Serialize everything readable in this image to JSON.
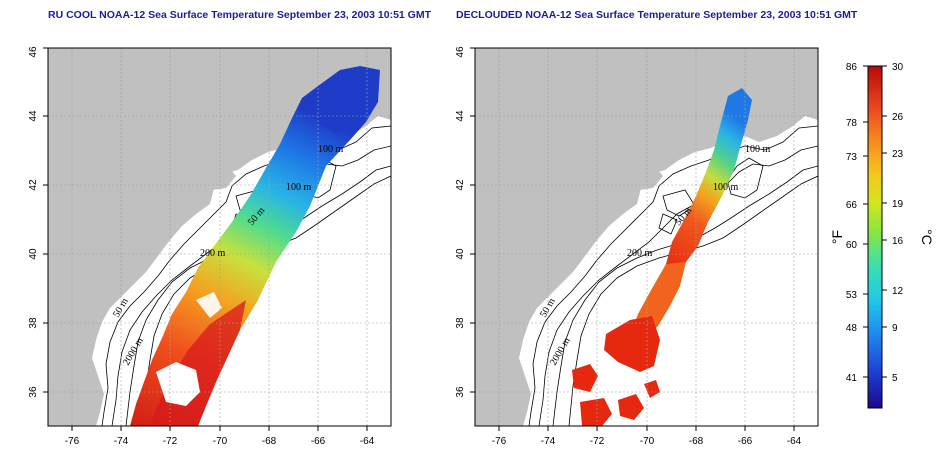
{
  "left_panel": {
    "title": "RU COOL NOAA-12 Sea Surface Temperature September 23, 2003 10:51 GMT",
    "contour_labels": [
      "100 m",
      "100 m",
      "50 m",
      "200 m",
      "50 m",
      "2000 m"
    ]
  },
  "right_panel": {
    "title": "DECLOUDED NOAA-12 Sea Surface Temperature September 23, 2003 10:51 GMT",
    "contour_labels": [
      "100 m",
      "100 m",
      "50 m",
      "200 m",
      "50 m",
      "2000 m"
    ]
  },
  "axes": {
    "x_ticks": [
      "-76",
      "-74",
      "-72",
      "-70",
      "-68",
      "-66",
      "-64"
    ],
    "y_ticks": [
      "36",
      "38",
      "40",
      "42",
      "44",
      "46"
    ]
  },
  "colorbar": {
    "fahrenheit_unit": "°F",
    "celsius_unit": "°C",
    "fahrenheit_ticks": [
      "86",
      "78",
      "73",
      "66",
      "60",
      "53",
      "48",
      "41"
    ],
    "celsius_ticks": [
      "30",
      "26",
      "23",
      "19",
      "16",
      "12",
      "9",
      "5"
    ],
    "range_c": [
      2,
      30
    ]
  },
  "colors": {
    "land": "#c0c0c0",
    "title": "#1c1c9a",
    "grid": "#a0a0a0"
  }
}
